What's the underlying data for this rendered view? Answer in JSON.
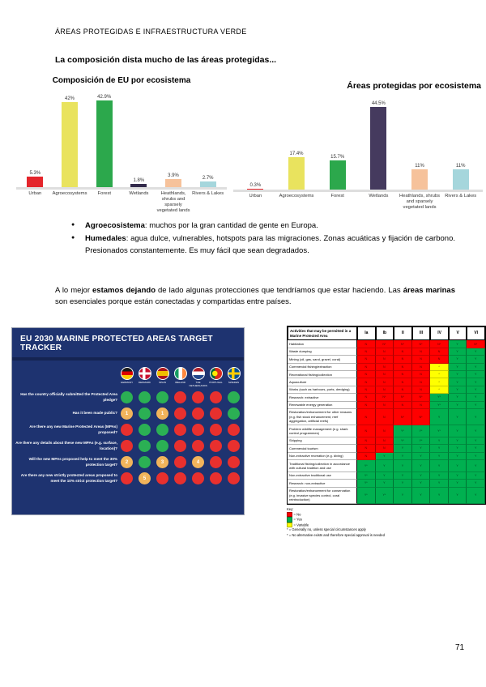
{
  "page": {
    "header": "ÁREAS PROTEGIDAS E INFRAESTRUCTURA VERDE",
    "title": "La composición dista mucho de las áreas protegidas...",
    "page_number": "71"
  },
  "bullets": [
    {
      "runs": [
        {
          "t": "Agroecosistema",
          "b": true
        },
        {
          "t": ": muchos por la gran cantidad de gente en Europa.",
          "b": false
        }
      ]
    },
    {
      "runs": [
        {
          "t": "Humedales",
          "b": true
        },
        {
          "t": ": agua dulce, vulnerables, hotspots para las migraciones. Zonas acuáticas y fijación de carbono. Presionados constantemente. Es muy fácil que sean degradados.",
          "b": false
        }
      ]
    }
  ],
  "paragraph": {
    "runs": [
      {
        "t": "A lo mejor ",
        "b": false
      },
      {
        "t": "estamos dejando",
        "b": true
      },
      {
        "t": " de lado algunas protecciones que tendríamos que estar haciendo. Las ",
        "b": false
      },
      {
        "t": "áreas marinas",
        "b": true
      },
      {
        "t": " son esenciales porque están conectadas y compartidas entre países.",
        "b": false
      }
    ]
  },
  "chart_data": [
    {
      "type": "bar",
      "title": "Composición de EU por ecosistema",
      "categories": [
        "Urban",
        "Agroecosystems",
        "Forest",
        "Wetlands",
        "Heathlands, shrubs and sparsely vegetated lands",
        "Rivers & Lakes"
      ],
      "values": [
        5.3,
        42,
        42.9,
        1.8,
        3.9,
        2.7
      ],
      "labels": [
        "5.3%",
        "42%",
        "42.9%",
        "1.8%",
        "3.9%",
        "2.7%"
      ],
      "colors": [
        "#e4252b",
        "#e9e35e",
        "#2ca84c",
        "#332b4b",
        "#f6c29b",
        "#a5d6dc"
      ],
      "xlabel": "",
      "ylabel": "",
      "ylim": [
        0,
        45
      ],
      "grid": false,
      "legend": "none"
    },
    {
      "type": "bar",
      "title": "Áreas protegidas por ecosistema",
      "categories": [
        "Urban",
        "Agroecosystems",
        "Forest",
        "Wetlands",
        "Heathlands, shrubs and sparsely vegetated lands",
        "Rivers & Lakes"
      ],
      "values": [
        0.3,
        17.4,
        15.7,
        44.5,
        11,
        11
      ],
      "labels": [
        "0.3%",
        "17.4%",
        "15.7%",
        "44.5%",
        "11%",
        "11%"
      ],
      "colors": [
        "#e4252b",
        "#e9e35e",
        "#2ca84c",
        "#453a5e",
        "#f6c29b",
        "#a5d6dc"
      ],
      "xlabel": "",
      "ylabel": "",
      "ylim": [
        0,
        47
      ],
      "grid": false,
      "legend": "none"
    }
  ],
  "tracker": {
    "title": "EU 2030 MARINE PROTECTED AREAS TARGET TRACKER",
    "bg_color": "#1e3370",
    "dot_colors": {
      "g": "#2bb054",
      "r": "#e8302e",
      "y": "#f2b45b"
    },
    "countries": [
      {
        "name": "GERMANY",
        "flag": "germany"
      },
      {
        "name": "DENMARK",
        "flag": "denmark"
      },
      {
        "name": "SPAIN",
        "flag": "spain"
      },
      {
        "name": "IRELAND",
        "flag": "ireland"
      },
      {
        "name": "THE NETHERLANDS",
        "flag": "netherlands"
      },
      {
        "name": "PORTUGAL",
        "flag": "portugal"
      },
      {
        "name": "SWEDEN",
        "flag": "sweden"
      }
    ],
    "rows": [
      {
        "question": "Has the country officially submitted the Protected Area pledge?",
        "dots": [
          "g",
          "g",
          "g",
          "r",
          "r",
          "r",
          "g"
        ]
      },
      {
        "question": "Has it been made public?",
        "dots": [
          "y1",
          "g",
          "y1",
          "r",
          "r",
          "r",
          "g"
        ]
      },
      {
        "question": "Are there any new Marine Protected Areas (MPAs) proposed?",
        "dots": [
          "r",
          "g",
          "g",
          "r",
          "r",
          "r",
          "r"
        ]
      },
      {
        "question": "Are there any details about these new MPAs (e.g. surface, location)?",
        "dots": [
          "r",
          "g",
          "g",
          "r",
          "r",
          "r",
          "r"
        ]
      },
      {
        "question": "Will the new MPAs proposed help to meet the 30% protection target?",
        "dots": [
          "y2",
          "g",
          "y3",
          "r",
          "y4",
          "r",
          "r"
        ]
      },
      {
        "question": "Are there any new strictly protected areas proposed to meet the 10% strict protection target?",
        "dots": [
          "r",
          "y5",
          "r",
          "r",
          "r",
          "r",
          "r"
        ]
      }
    ]
  },
  "matrix": {
    "header": "Activities that may be permitted in a Marine Protected Area",
    "columns": [
      "Ia",
      "Ib",
      "II",
      "III",
      "IV",
      "V",
      "VI"
    ],
    "cell_colors": {
      "r": "#ff0000",
      "g": "#00b050",
      "y": "#ffff00"
    },
    "rows": [
      {
        "label": "Habitation",
        "v": [
          "N",
          "N*",
          "N*",
          "N*",
          "N*",
          "Y",
          "N*"
        ],
        "c": "rrrrrgr"
      },
      {
        "label": "Waste dumping",
        "v": [
          "N",
          "N",
          "N",
          "N",
          "N",
          "Y",
          "Y"
        ],
        "c": "rrrrrgg"
      },
      {
        "label": "Mining (oil, gas, sand, gravel, coral)",
        "v": [
          "N",
          "N",
          "N",
          "N",
          "N",
          "Y",
          "Y"
        ],
        "c": "rrrrrgg"
      },
      {
        "label": "Commercial fishing/extraction",
        "v": [
          "N",
          "N",
          "N",
          "N",
          "*",
          "Y",
          "Y"
        ],
        "c": "rrrrygg"
      },
      {
        "label": "Recreational fishing/collection",
        "v": [
          "N",
          "N",
          "N",
          "N",
          "*",
          "Y",
          "Y"
        ],
        "c": "rrrrygg"
      },
      {
        "label": "Aquaculture",
        "v": [
          "N",
          "N",
          "N",
          "N",
          "*",
          "Y",
          "Y"
        ],
        "c": "rrrrygg"
      },
      {
        "label": "Works (such as harbours, ports, dredging)",
        "v": [
          "N",
          "N",
          "N",
          "N",
          "*",
          "Y",
          "Y"
        ],
        "c": "rrrrygg"
      },
      {
        "label": "Research: extractive",
        "v": [
          "N",
          "N*",
          "N*",
          "N*",
          "Y*",
          "Y",
          "Y"
        ],
        "c": "rrrrggg"
      },
      {
        "label": "Renewable energy generation",
        "v": [
          "N",
          "N",
          "N",
          "N",
          "Y*",
          "Y",
          "Y"
        ],
        "c": "rrrrggg"
      },
      {
        "label": "Restoration/enhancement for other reasons (e.g. fish stock enhancement, reef aggregation, artificial reefs)",
        "v": [
          "N",
          "N",
          "N*",
          "N*",
          "Y",
          "Y",
          "Y"
        ],
        "c": "rrrrggg"
      },
      {
        "label": "Problem wildlife management (e.g. shark control programmes)",
        "v": [
          "N",
          "N",
          "Y*",
          "Y*",
          "Y*",
          "Y",
          "Y"
        ],
        "c": "rrggggg"
      },
      {
        "label": "Shipping",
        "v": [
          "N",
          "N",
          "Y*",
          "Y*",
          "Y",
          "Y",
          "Y"
        ],
        "c": "rrggggg"
      },
      {
        "label": "Commercial tourism",
        "v": [
          "N",
          "N",
          "Y",
          "Y",
          "Y",
          "Y",
          "Y"
        ],
        "c": "rrggggg"
      },
      {
        "label": "Non-extractive recreation (e.g. diving)",
        "v": [
          "N",
          "Y",
          "Y",
          "Y",
          "Y",
          "Y",
          "Y"
        ],
        "c": "rgggggg"
      },
      {
        "label": "Traditional fishing/collection in accordance with cultural tradition and use",
        "v": [
          "Y*",
          "Y",
          "Y",
          "Y",
          "Y",
          "Y",
          "Y"
        ],
        "c": "ggggggg"
      },
      {
        "label": "Non-extractive traditional use",
        "v": [
          "Y*",
          "Y",
          "Y",
          "Y",
          "Y",
          "Y",
          "Y"
        ],
        "c": "ggggggg"
      },
      {
        "label": "Research: non-extractive",
        "v": [
          "Y*",
          "Y",
          "Y",
          "Y",
          "Y",
          "Y",
          "Y"
        ],
        "c": "ggggggg"
      },
      {
        "label": "Restoration/enhancement for conservation (e.g. invasive species control, coral reintroduction)",
        "v": [
          "Y*",
          "Y*",
          "Y",
          "Y",
          "Y",
          "Y",
          "Y"
        ],
        "c": "ggggggg"
      }
    ],
    "key_title": "Key:",
    "key": [
      {
        "c": "r",
        "label": "No"
      },
      {
        "c": "g",
        "label": "Yes"
      },
      {
        "c": "y",
        "label": "Variable"
      }
    ],
    "key_notes": [
      "* = Generally no, unless special circumstances apply",
      "* = No alternative exists and therefore special approval is needed"
    ]
  }
}
